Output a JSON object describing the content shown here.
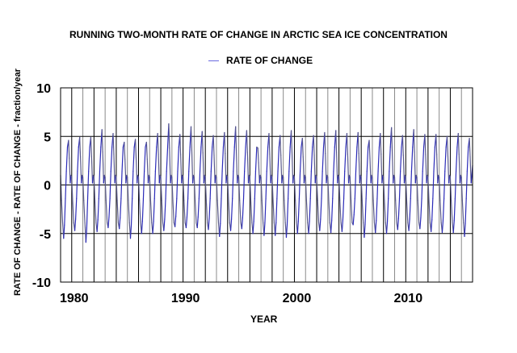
{
  "chart_data": {
    "type": "line",
    "title": "RUNNING TWO-MONTH RATE OF CHANGE IN ARCTIC SEA ICE CONCENTRATION",
    "xlabel": "YEAR",
    "ylabel": "RATE OF CHANGE - RATE OF CHANGE - fraction/year",
    "xlim": [
      1979,
      2016
    ],
    "ylim": [
      -10,
      10
    ],
    "x_ticks": [
      1980,
      1990,
      2000,
      2010
    ],
    "x_tick_labels": [
      "1980",
      "1990",
      "2000",
      "2010"
    ],
    "y_ticks": [
      10,
      5,
      0,
      -5,
      -10
    ],
    "y_tick_labels": [
      "10",
      "5",
      "0",
      "-5",
      "-10"
    ],
    "horizontal_gridlines": [
      5,
      0,
      -5
    ],
    "vertical_gridlines": "yearly",
    "legend": {
      "position": "top-center",
      "entries": [
        "RATE OF CHANGE"
      ]
    },
    "series": [
      {
        "name": "RATE OF CHANGE",
        "color": "#2b2bb8",
        "years": [
          1979,
          1980,
          1981,
          1982,
          1983,
          1984,
          1985,
          1986,
          1987,
          1988,
          1989,
          1990,
          1991,
          1992,
          1993,
          1994,
          1995,
          1996,
          1997,
          1998,
          1999,
          2000,
          2001,
          2002,
          2003,
          2004,
          2005,
          2006,
          2007,
          2008,
          2009,
          2010,
          2011,
          2012,
          2013,
          2014,
          2015
        ],
        "annual_peak": [
          4.6,
          4.9,
          4.9,
          5.7,
          5.3,
          4.4,
          4.7,
          4.4,
          5.3,
          6.3,
          5.2,
          6.0,
          5.5,
          5.1,
          5.4,
          6.0,
          5.6,
          3.8,
          5.3,
          5.1,
          5.6,
          4.8,
          5.1,
          5.4,
          5.6,
          5.3,
          5.4,
          4.6,
          5.3,
          5.9,
          5.1,
          5.7,
          5.2,
          5.2,
          5.0,
          5.3,
          4.8
        ],
        "annual_trough": [
          -5.5,
          -4.7,
          -5.9,
          -4.8,
          -4.4,
          -4.5,
          -5.5,
          -5.0,
          -5.0,
          -4.7,
          -4.3,
          -4.4,
          -4.4,
          -4.6,
          -5.3,
          -4.7,
          -4.5,
          -5.0,
          -5.2,
          -5.2,
          -5.4,
          -5.0,
          -5.0,
          -4.7,
          -4.9,
          -4.8,
          -4.1,
          -5.4,
          -4.9,
          -5.0,
          -4.6,
          -4.7,
          -4.5,
          -4.8,
          -4.9,
          -4.9,
          -5.3
        ],
        "start_value": 1.0,
        "end_value": 2.0,
        "monthly_shape": {
          "note": "value per month: fixed numbers, or 'T'/'P' scaled by annual trough/peak",
          "months": [
            {
              "m": 0.0,
              "v": 0.8
            },
            {
              "m": 1.0,
              "v": -1.6
            },
            {
              "m": 2.2,
              "v": -3.9
            },
            {
              "m": 3.3,
              "t": 1.0
            },
            {
              "m": 4.2,
              "t": 0.75
            },
            {
              "m": 5.2,
              "v": -1.4
            },
            {
              "m": 6.2,
              "v": 1.4
            },
            {
              "m": 7.4,
              "v": 3.9
            },
            {
              "m": 8.6,
              "p": 1.0
            },
            {
              "m": 9.4,
              "p": 0.6
            },
            {
              "m": 10.4,
              "v": 0.2
            },
            {
              "m": 11.2,
              "v": 1.0
            }
          ]
        }
      }
    ]
  }
}
